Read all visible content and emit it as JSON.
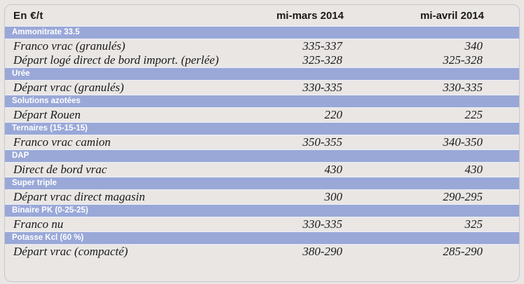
{
  "header": {
    "unit": "En €/t",
    "col1": "mi-mars 2014",
    "col2": "mi-avril 2014"
  },
  "groups": [
    {
      "name": "Ammonitrate 33.5",
      "rows": [
        {
          "label": "Franco vrac (granulés)",
          "v1": "335-337",
          "v2": "340"
        },
        {
          "label": "Départ logé direct de bord import. (perlée)",
          "v1": "325-328",
          "v2": "325-328"
        }
      ]
    },
    {
      "name": "Urée",
      "rows": [
        {
          "label": "Départ vrac (granulés)",
          "v1": "330-335",
          "v2": "330-335"
        }
      ]
    },
    {
      "name": "Solutions azotées",
      "rows": [
        {
          "label": "Départ Rouen",
          "v1": "220",
          "v2": "225"
        }
      ]
    },
    {
      "name": "Ternaires (15-15-15)",
      "rows": [
        {
          "label": "Franco vrac camion",
          "v1": "350-355",
          "v2": "340-350"
        }
      ]
    },
    {
      "name": "DAP",
      "rows": [
        {
          "label": "Direct de bord vrac",
          "v1": "430",
          "v2": "430"
        }
      ]
    },
    {
      "name": "Super triple",
      "rows": [
        {
          "label": "Départ vrac direct magasin",
          "v1": "300",
          "v2": "290-295"
        }
      ]
    },
    {
      "name": "Binaire PK (0-25-25)",
      "rows": [
        {
          "label": "Franco nu",
          "v1": "330-335",
          "v2": "325"
        }
      ]
    },
    {
      "name": "Potasse Kcl (60 %)",
      "rows": [
        {
          "label": "Départ vrac (compacté)",
          "v1": "380-290",
          "v2": "285-290"
        }
      ]
    }
  ]
}
